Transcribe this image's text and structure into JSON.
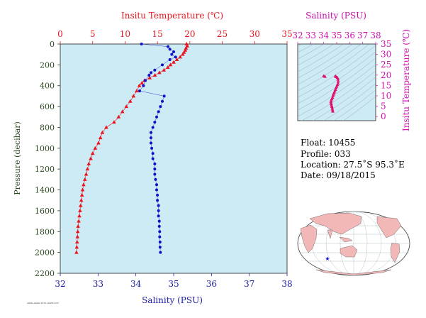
{
  "chart_data": [
    {
      "type": "scatter",
      "title": "",
      "temp_axis_label": "Insitu Temperature (℃)",
      "sal_axis_label": "Salinity (PSU)",
      "ylabel": "Pressure (decibar)",
      "temp_ticks": [
        "0",
        "5",
        "10",
        "15",
        "20",
        "25",
        "30",
        "35"
      ],
      "sal_ticks": [
        "32",
        "33",
        "34",
        "35",
        "36",
        "37",
        "38"
      ],
      "pressure_ticks": [
        "0",
        "200",
        "400",
        "600",
        "800",
        "1000",
        "1200",
        "1400",
        "1600",
        "1800",
        "2000",
        "2200"
      ],
      "temp_lim": [
        0,
        35
      ],
      "sal_lim": [
        32,
        38
      ],
      "pressure_lim": [
        0,
        2200
      ],
      "grid": false,
      "colors": {
        "temperature": "#e8141e",
        "salinity": "#1010c8",
        "plot_bg": "#cdebf5"
      },
      "series": [
        {
          "name": "",
          "points": [
            [
              19.5,
              0
            ],
            [
              19.6,
              20
            ],
            [
              19.4,
              40
            ],
            [
              19.3,
              60
            ],
            [
              19.1,
              80
            ],
            [
              18.9,
              100
            ],
            [
              18.5,
              125
            ],
            [
              18.0,
              150
            ],
            [
              17.5,
              175
            ],
            [
              17.0,
              200
            ],
            [
              16.6,
              225
            ],
            [
              16.0,
              250
            ],
            [
              15.3,
              275
            ],
            [
              14.6,
              300
            ],
            [
              13.8,
              325
            ],
            [
              13.0,
              350
            ],
            [
              12.6,
              375
            ],
            [
              12.2,
              400
            ],
            [
              11.8,
              450
            ],
            [
              11.3,
              500
            ],
            [
              10.8,
              550
            ],
            [
              10.2,
              600
            ],
            [
              9.6,
              650
            ],
            [
              9.0,
              700
            ],
            [
              8.3,
              750
            ],
            [
              7.1,
              800
            ],
            [
              6.5,
              850
            ],
            [
              6.2,
              900
            ],
            [
              5.9,
              950
            ],
            [
              5.4,
              1000
            ],
            [
              5.0,
              1050
            ],
            [
              4.7,
              1100
            ],
            [
              4.4,
              1150
            ],
            [
              4.2,
              1200
            ],
            [
              4.0,
              1250
            ],
            [
              3.8,
              1300
            ],
            [
              3.6,
              1350
            ],
            [
              3.45,
              1400
            ],
            [
              3.35,
              1450
            ],
            [
              3.25,
              1500
            ],
            [
              3.15,
              1550
            ],
            [
              3.05,
              1600
            ],
            [
              2.95,
              1650
            ],
            [
              2.85,
              1700
            ],
            [
              2.75,
              1750
            ],
            [
              2.7,
              1800
            ],
            [
              2.65,
              1850
            ],
            [
              2.6,
              1900
            ],
            [
              2.55,
              1950
            ],
            [
              2.5,
              2000
            ]
          ]
        },
        {
          "name": "",
          "points": [
            [
              34.15,
              0
            ],
            [
              34.85,
              25
            ],
            [
              34.9,
              50
            ],
            [
              35.0,
              75
            ],
            [
              34.95,
              100
            ],
            [
              35.05,
              125
            ],
            [
              34.9,
              150
            ],
            [
              34.7,
              200
            ],
            [
              34.5,
              250
            ],
            [
              34.4,
              275
            ],
            [
              34.35,
              300
            ],
            [
              34.25,
              350
            ],
            [
              34.2,
              400
            ],
            [
              34.1,
              450
            ],
            [
              34.75,
              500
            ],
            [
              34.7,
              550
            ],
            [
              34.65,
              600
            ],
            [
              34.6,
              650
            ],
            [
              34.55,
              700
            ],
            [
              34.5,
              750
            ],
            [
              34.45,
              800
            ],
            [
              34.4,
              850
            ],
            [
              34.4,
              900
            ],
            [
              34.4,
              950
            ],
            [
              34.42,
              1000
            ],
            [
              34.45,
              1050
            ],
            [
              34.45,
              1100
            ],
            [
              34.5,
              1150
            ],
            [
              34.5,
              1200
            ],
            [
              34.5,
              1250
            ],
            [
              34.52,
              1300
            ],
            [
              34.55,
              1350
            ],
            [
              34.55,
              1400
            ],
            [
              34.57,
              1450
            ],
            [
              34.57,
              1500
            ],
            [
              34.6,
              1550
            ],
            [
              34.6,
              1600
            ],
            [
              34.6,
              1650
            ],
            [
              34.62,
              1700
            ],
            [
              34.62,
              1750
            ],
            [
              34.63,
              1800
            ],
            [
              34.63,
              1850
            ],
            [
              34.64,
              1900
            ],
            [
              34.64,
              1950
            ],
            [
              34.65,
              2000
            ]
          ]
        }
      ]
    },
    {
      "type": "scatter",
      "title": "",
      "xlabel": "Salinity (PSU)",
      "ylabel": "Insitu Temperature (℃)",
      "xlim": [
        32,
        38
      ],
      "ylim": [
        -2,
        35
      ],
      "x_ticks": [
        "32",
        "33",
        "34",
        "35",
        "36",
        "37",
        "38"
      ],
      "y_ticks": [
        "0",
        "5",
        "10",
        "15",
        "20",
        "25",
        "30",
        "35"
      ],
      "grid": false,
      "colors": {
        "points": "#e0106e",
        "axis": "#d010b0"
      },
      "series": [
        {
          "name": "",
          "points": [
            [
              34.7,
              2.5
            ],
            [
              34.68,
              3.2
            ],
            [
              34.66,
              4.0
            ],
            [
              34.63,
              4.8
            ],
            [
              34.6,
              5.5
            ],
            [
              34.58,
              6.2
            ],
            [
              34.55,
              7.0
            ],
            [
              34.58,
              7.8
            ],
            [
              34.62,
              8.5
            ],
            [
              34.68,
              9.2
            ],
            [
              34.72,
              10.0
            ],
            [
              34.75,
              10.8
            ],
            [
              34.8,
              11.5
            ],
            [
              34.85,
              12.2
            ],
            [
              34.9,
              13.0
            ],
            [
              34.95,
              13.8
            ],
            [
              35.0,
              14.5
            ],
            [
              35.05,
              15.3
            ],
            [
              35.1,
              16.0
            ],
            [
              35.12,
              17.0
            ],
            [
              35.1,
              18.0
            ],
            [
              35.05,
              18.8
            ],
            [
              34.95,
              19.2
            ],
            [
              34.9,
              19.5
            ],
            [
              34.1,
              19.3
            ],
            [
              34.0,
              19.6
            ]
          ]
        }
      ]
    }
  ],
  "info": {
    "float": "Float:  10455",
    "profile": "Profile:  033",
    "location": "Location:  27.5˚S  95.3˚E",
    "date": "Date:  09/18/2015"
  },
  "footer_code": "AOML-ARGO-2015-10455-033"
}
